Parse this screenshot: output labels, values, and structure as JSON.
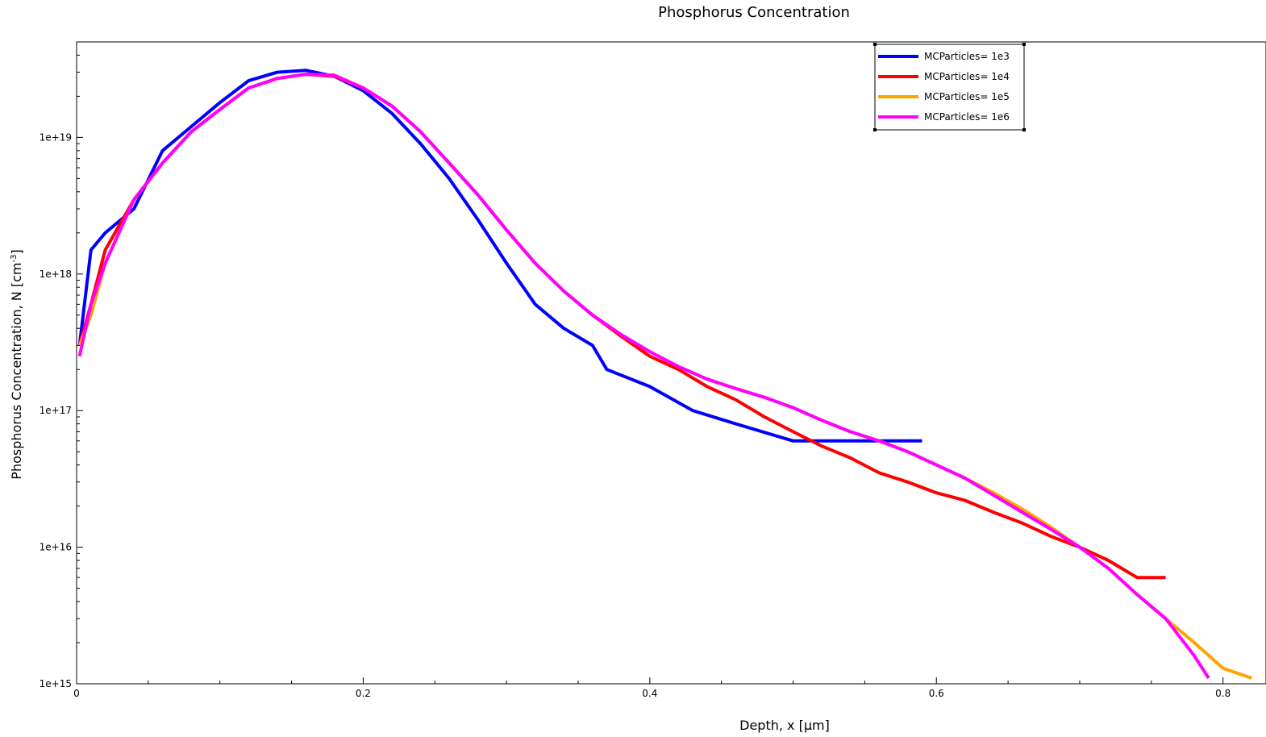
{
  "chart_data": {
    "type": "line",
    "title": "Phosphorus Concentration",
    "xlabel": "Depth, x [µm]",
    "ylabel_main": "Phosphorus Concentration, N [cm",
    "ylabel_sup": "-3",
    "ylabel_end": "]",
    "xlim": [
      0,
      0.83
    ],
    "ylim": [
      1000000000000000.0,
      5e+19
    ],
    "yscale": "log",
    "x_ticks": [
      {
        "value": 0,
        "label": "0"
      },
      {
        "value": 0.2,
        "label": "0.2"
      },
      {
        "value": 0.4,
        "label": "0.4"
      },
      {
        "value": 0.6,
        "label": "0.6"
      },
      {
        "value": 0.8,
        "label": "0.8"
      }
    ],
    "y_ticks": [
      {
        "value": 1000000000000000.0,
        "label": "1e+15"
      },
      {
        "value": 1e+16,
        "label": "1e+16"
      },
      {
        "value": 1e+17,
        "label": "1e+17"
      },
      {
        "value": 1e+18,
        "label": "1e+18"
      },
      {
        "value": 1e+19,
        "label": "1e+19"
      }
    ],
    "legend_position": "top-right",
    "series": [
      {
        "name": "MCParticles= 1e3",
        "color": "#0000ff",
        "x": [
          0.002,
          0.01,
          0.02,
          0.04,
          0.06,
          0.08,
          0.1,
          0.12,
          0.14,
          0.16,
          0.18,
          0.2,
          0.22,
          0.24,
          0.26,
          0.28,
          0.3,
          0.32,
          0.34,
          0.36,
          0.37,
          0.4,
          0.43,
          0.46,
          0.5,
          0.53,
          0.56,
          0.59
        ],
        "y": [
          3e+17,
          1.5e+18,
          2e+18,
          3e+18,
          8e+18,
          1.2e+19,
          1.8e+19,
          2.6e+19,
          3e+19,
          3.1e+19,
          2.8e+19,
          2.2e+19,
          1.5e+19,
          9e+18,
          5e+18,
          2.5e+18,
          1.2e+18,
          6e+17,
          4e+17,
          3e+17,
          2e+17,
          1.5e+17,
          1e+17,
          8e+16,
          6e+16,
          6e+16,
          6e+16,
          6e+16
        ]
      },
      {
        "name": "MCParticles= 1e4",
        "color": "#ff0000",
        "x": [
          0.002,
          0.01,
          0.02,
          0.04,
          0.06,
          0.08,
          0.1,
          0.12,
          0.14,
          0.16,
          0.18,
          0.2,
          0.22,
          0.24,
          0.26,
          0.28,
          0.3,
          0.32,
          0.34,
          0.36,
          0.38,
          0.4,
          0.42,
          0.44,
          0.46,
          0.48,
          0.5,
          0.52,
          0.54,
          0.56,
          0.58,
          0.6,
          0.62,
          0.64,
          0.66,
          0.68,
          0.7,
          0.72,
          0.74,
          0.76
        ],
        "y": [
          3e+17,
          6e+17,
          1.5e+18,
          3.5e+18,
          6.5e+18,
          1.1e+19,
          1.6e+19,
          2.3e+19,
          2.7e+19,
          2.9e+19,
          2.8e+19,
          2.3e+19,
          1.7e+19,
          1.1e+19,
          6.5e+18,
          3.8e+18,
          2.1e+18,
          1.2e+18,
          7.5e+17,
          5e+17,
          3.5e+17,
          2.5e+17,
          2e+17,
          1.5e+17,
          1.2e+17,
          9e+16,
          7e+16,
          5.5e+16,
          4.5e+16,
          3.5e+16,
          3e+16,
          2.5e+16,
          2.2e+16,
          1.8e+16,
          1.5e+16,
          1.2e+16,
          1e+16,
          8000000000000000.0,
          6000000000000000.0,
          6000000000000000.0
        ]
      },
      {
        "name": "MCParticles= 1e5",
        "color": "#ffa500",
        "x": [
          0.002,
          0.01,
          0.02,
          0.04,
          0.06,
          0.08,
          0.1,
          0.12,
          0.14,
          0.16,
          0.18,
          0.2,
          0.22,
          0.24,
          0.26,
          0.28,
          0.3,
          0.32,
          0.34,
          0.36,
          0.38,
          0.4,
          0.42,
          0.44,
          0.46,
          0.48,
          0.5,
          0.52,
          0.54,
          0.56,
          0.58,
          0.6,
          0.62,
          0.64,
          0.66,
          0.68,
          0.7,
          0.72,
          0.74,
          0.76,
          0.78,
          0.8,
          0.82
        ],
        "y": [
          3e+17,
          5e+17,
          1.2e+18,
          3.5e+18,
          6.5e+18,
          1.1e+19,
          1.6e+19,
          2.3e+19,
          2.7e+19,
          2.9e+19,
          2.85e+19,
          2.3e+19,
          1.7e+19,
          1.1e+19,
          6.5e+18,
          3.8e+18,
          2.1e+18,
          1.2e+18,
          7.5e+17,
          5e+17,
          3.6e+17,
          2.7e+17,
          2.1e+17,
          1.7e+17,
          1.45e+17,
          1.25e+17,
          1.05e+17,
          8.5e+16,
          7e+16,
          6e+16,
          5e+16,
          4e+16,
          3.2e+16,
          2.5e+16,
          1.9e+16,
          1.4e+16,
          1e+16,
          7000000000000000.0,
          4500000000000000.0,
          3000000000000000.0,
          2000000000000000.0,
          1300000000000000.0,
          1100000000000000.0
        ]
      },
      {
        "name": "MCParticles= 1e6",
        "color": "#ff00ff",
        "x": [
          0.002,
          0.01,
          0.02,
          0.04,
          0.06,
          0.08,
          0.1,
          0.12,
          0.14,
          0.16,
          0.18,
          0.2,
          0.22,
          0.24,
          0.26,
          0.28,
          0.3,
          0.32,
          0.34,
          0.36,
          0.38,
          0.4,
          0.42,
          0.44,
          0.46,
          0.48,
          0.5,
          0.52,
          0.54,
          0.56,
          0.58,
          0.6,
          0.62,
          0.64,
          0.66,
          0.68,
          0.7,
          0.72,
          0.74,
          0.76,
          0.78,
          0.79
        ],
        "y": [
          2.5e+17,
          6e+17,
          1.2e+18,
          3.5e+18,
          6.5e+18,
          1.1e+19,
          1.6e+19,
          2.3e+19,
          2.7e+19,
          2.9e+19,
          2.85e+19,
          2.3e+19,
          1.7e+19,
          1.1e+19,
          6.5e+18,
          3.8e+18,
          2.1e+18,
          1.2e+18,
          7.5e+17,
          5e+17,
          3.6e+17,
          2.7e+17,
          2.1e+17,
          1.7e+17,
          1.45e+17,
          1.25e+17,
          1.05e+17,
          8.5e+16,
          7e+16,
          6e+16,
          5e+16,
          4e+16,
          3.2e+16,
          2.4e+16,
          1.8e+16,
          1.35e+16,
          1e+16,
          7000000000000000.0,
          4500000000000000.0,
          3000000000000000.0,
          1600000000000000.0,
          1100000000000000.0
        ]
      }
    ]
  }
}
